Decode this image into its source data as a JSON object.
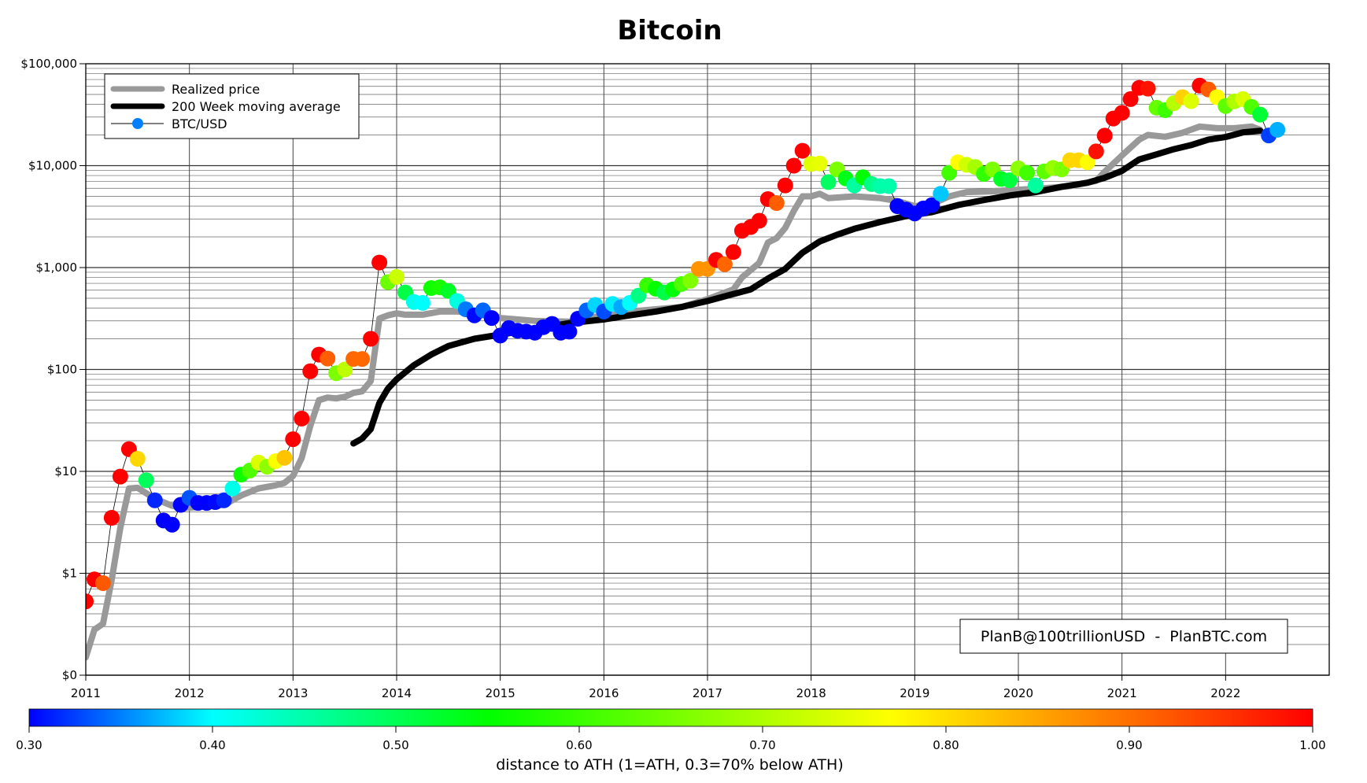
{
  "chart_data": {
    "type": "scatter",
    "title": "Bitcoin",
    "xlabel": "",
    "ylabel": "",
    "xlim": [
      2011,
      2023
    ],
    "x_ticks": [
      "2011",
      "2012",
      "2013",
      "2014",
      "2015",
      "2016",
      "2017",
      "2018",
      "2019",
      "2020",
      "2021",
      "2022"
    ],
    "y_scale": "log",
    "ylim": [
      0.1,
      100000
    ],
    "y_ticks": [
      {
        "value": 0.1,
        "label": "$0"
      },
      {
        "value": 1,
        "label": "$1"
      },
      {
        "value": 10,
        "label": "$10"
      },
      {
        "value": 100,
        "label": "$100"
      },
      {
        "value": 1000,
        "label": "$1,000"
      },
      {
        "value": 10000,
        "label": "$10,000"
      },
      {
        "value": 100000,
        "label": "$100,000"
      }
    ],
    "grid": true,
    "legend_placement": "top-left",
    "legend": [
      {
        "label": "Realized price",
        "color": "#999999",
        "style": "thick-line"
      },
      {
        "label": "200 Week moving average",
        "color": "#000000",
        "style": "thick-line"
      },
      {
        "label": "BTC/USD",
        "color": "#0080ff",
        "style": "line-marker"
      }
    ],
    "annotation": "PlanB@100trillionUSD  -  PlanBTC.com",
    "colorbar": {
      "label": "distance to ATH (1=ATH, 0.3=70% below ATH)",
      "range": [
        0.3,
        1.0
      ],
      "ticks": [
        "0.30",
        "0.40",
        "0.50",
        "0.60",
        "0.70",
        "0.80",
        "0.90",
        "1.00"
      ],
      "stops": [
        [
          0.3,
          "#0000ff"
        ],
        [
          0.4,
          "#00ffff"
        ],
        [
          0.55,
          "#00ff00"
        ],
        [
          0.77,
          "#ffff00"
        ],
        [
          1.0,
          "#ff0000"
        ]
      ]
    },
    "btc_usd": {
      "start": "2011-01",
      "frequency": "monthly",
      "values": [
        0.53,
        0.87,
        0.8,
        3.5,
        8.9,
        16.5,
        13.3,
        8.2,
        5.2,
        3.3,
        3.0,
        4.7,
        5.5,
        4.9,
        4.9,
        5.0,
        5.2,
        6.8,
        9.3,
        10.2,
        12.2,
        11.1,
        12.6,
        13.6,
        20.7,
        33,
        96,
        140,
        128,
        92,
        100,
        127,
        127,
        200,
        1120,
        720,
        810,
        570,
        460,
        450,
        630,
        640,
        590,
        470,
        390,
        340,
        380,
        320,
        215,
        255,
        240,
        235,
        230,
        260,
        280,
        230,
        235,
        315,
        380,
        430,
        370,
        440,
        410,
        450,
        530,
        670,
        620,
        570,
        610,
        690,
        740,
        970,
        970,
        1190,
        1080,
        1420,
        2300,
        2500,
        2880,
        4700,
        4300,
        6400,
        10000,
        14000,
        10400,
        10500,
        6900,
        9200,
        7500,
        6400,
        7700,
        6600,
        6300,
        6300,
        4000,
        3700,
        3400,
        3800,
        4100,
        5300,
        8500,
        10800,
        10200,
        9700,
        8300,
        9200,
        7400,
        7200,
        9400,
        8500,
        6400,
        8800,
        9500,
        9200,
        11300,
        11300,
        10800,
        13800,
        19700,
        29000,
        33000,
        45000,
        58000,
        57000,
        37000,
        35000,
        41000,
        47000,
        43000,
        61000,
        56000,
        47000,
        38500,
        42700,
        45000,
        37700,
        31700,
        19800,
        22500
      ]
    },
    "realized_price": [
      [
        "2011-01",
        0.15
      ],
      [
        "2011-02",
        0.28
      ],
      [
        "2011-03",
        0.32
      ],
      [
        "2011-04",
        0.86
      ],
      [
        "2011-05",
        2.8
      ],
      [
        "2011-06",
        6.8
      ],
      [
        "2011-07",
        6.9
      ],
      [
        "2011-09",
        5.4
      ],
      [
        "2011-11",
        4.6
      ],
      [
        "2012-01",
        4.4
      ],
      [
        "2012-05",
        4.7
      ],
      [
        "2012-07",
        5.8
      ],
      [
        "2012-09",
        6.8
      ],
      [
        "2012-11",
        7.3
      ],
      [
        "2012-12",
        7.7
      ],
      [
        "2013-01",
        9
      ],
      [
        "2013-02",
        13.5
      ],
      [
        "2013-03",
        28
      ],
      [
        "2013-04",
        50
      ],
      [
        "2013-05",
        53
      ],
      [
        "2013-06",
        52
      ],
      [
        "2013-07",
        54
      ],
      [
        "2013-08",
        59
      ],
      [
        "2013-09",
        61
      ],
      [
        "2013-10",
        77
      ],
      [
        "2013-11",
        316
      ],
      [
        "2013-12",
        340
      ],
      [
        "2014-01",
        355
      ],
      [
        "2014-02",
        345
      ],
      [
        "2014-04",
        345
      ],
      [
        "2014-06",
        370
      ],
      [
        "2014-08",
        370
      ],
      [
        "2014-10",
        360
      ],
      [
        "2014-12",
        345
      ],
      [
        "2015-01",
        320
      ],
      [
        "2015-05",
        300
      ],
      [
        "2015-09",
        295
      ],
      [
        "2016-01",
        340
      ],
      [
        "2016-04",
        370
      ],
      [
        "2016-07",
        390
      ],
      [
        "2016-10",
        410
      ],
      [
        "2017-01",
        490
      ],
      [
        "2017-04",
        610
      ],
      [
        "2017-05",
        800
      ],
      [
        "2017-07",
        1110
      ],
      [
        "2017-08",
        1760
      ],
      [
        "2017-09",
        1940
      ],
      [
        "2017-10",
        2450
      ],
      [
        "2017-11",
        3600
      ],
      [
        "2017-12",
        5000
      ],
      [
        "2018-01",
        5000
      ],
      [
        "2018-02",
        5300
      ],
      [
        "2018-03",
        4800
      ],
      [
        "2018-06",
        5000
      ],
      [
        "2018-09",
        4800
      ],
      [
        "2018-11",
        4500
      ],
      [
        "2019-01",
        4000
      ],
      [
        "2019-03",
        4200
      ],
      [
        "2019-05",
        5000
      ],
      [
        "2019-07",
        5500
      ],
      [
        "2019-10",
        5600
      ],
      [
        "2020-01",
        5800
      ],
      [
        "2020-04",
        6000
      ],
      [
        "2020-07",
        6300
      ],
      [
        "2020-10",
        7100
      ],
      [
        "2020-11",
        8700
      ],
      [
        "2021-01",
        12600
      ],
      [
        "2021-03",
        18000
      ],
      [
        "2021-04",
        20000
      ],
      [
        "2021-06",
        19200
      ],
      [
        "2021-08",
        21000
      ],
      [
        "2021-10",
        24200
      ],
      [
        "2021-12",
        23300
      ],
      [
        "2022-02",
        23300
      ],
      [
        "2022-04",
        24200
      ],
      [
        "2022-05",
        22500
      ]
    ],
    "ma_200_week": [
      [
        "2013-08",
        18.8
      ],
      [
        "2013-09",
        21
      ],
      [
        "2013-10",
        26
      ],
      [
        "2013-11",
        47
      ],
      [
        "2013-12",
        65
      ],
      [
        "2014-01",
        80
      ],
      [
        "2014-03",
        110
      ],
      [
        "2014-05",
        140
      ],
      [
        "2014-07",
        170
      ],
      [
        "2014-10",
        200
      ],
      [
        "2015-01",
        220
      ],
      [
        "2015-05",
        250
      ],
      [
        "2015-09",
        285
      ],
      [
        "2016-01",
        310
      ],
      [
        "2016-04",
        340
      ],
      [
        "2016-07",
        370
      ],
      [
        "2016-10",
        410
      ],
      [
        "2017-01",
        470
      ],
      [
        "2017-04",
        550
      ],
      [
        "2017-06",
        610
      ],
      [
        "2017-08",
        780
      ],
      [
        "2017-10",
        970
      ],
      [
        "2017-12",
        1400
      ],
      [
        "2018-02",
        1800
      ],
      [
        "2018-04",
        2100
      ],
      [
        "2018-06",
        2400
      ],
      [
        "2018-09",
        2800
      ],
      [
        "2018-12",
        3200
      ],
      [
        "2019-03",
        3500
      ],
      [
        "2019-06",
        4100
      ],
      [
        "2019-09",
        4600
      ],
      [
        "2019-12",
        5100
      ],
      [
        "2020-03",
        5500
      ],
      [
        "2020-06",
        6200
      ],
      [
        "2020-09",
        6800
      ],
      [
        "2020-11",
        7600
      ],
      [
        "2021-01",
        8900
      ],
      [
        "2021-03",
        11500
      ],
      [
        "2021-05",
        12900
      ],
      [
        "2021-07",
        14500
      ],
      [
        "2021-09",
        15900
      ],
      [
        "2021-11",
        18000
      ],
      [
        "2022-01",
        19100
      ],
      [
        "2022-03",
        21200
      ],
      [
        "2022-05",
        22000
      ]
    ]
  }
}
